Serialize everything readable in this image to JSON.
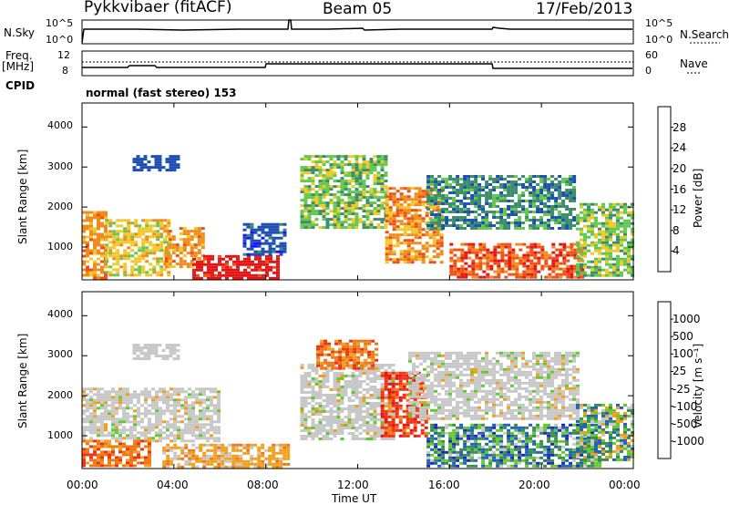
{
  "header": {
    "radar": "Pykkvibaer (fitACF)",
    "beam": "Beam 05",
    "date": "17/Feb/2013"
  },
  "top_panels": {
    "nsky_label": "N.Sky",
    "nsky_ticks": [
      "10^5",
      "10^0"
    ],
    "nsearch_label": "N.Search",
    "nsearch_ticks": [
      "10^5",
      "10^0"
    ],
    "freq_label": "Freq.",
    "freq_unit": "[MHz]",
    "freq_ticks": [
      "12",
      "8"
    ],
    "nave_label": "Nave",
    "nave_ticks": [
      "60",
      "0"
    ],
    "cpid_label": "CPID",
    "cpid_value": "normal (fast stereo) 153"
  },
  "chart_data": [
    {
      "type": "heatmap",
      "parameter": "Power",
      "ylabel": "Slant Range [km]",
      "xlabel": "",
      "x_ticks": [
        "00:00",
        "04:00",
        "08:00",
        "12:00",
        "16:00",
        "20:00",
        "00:00"
      ],
      "y_ticks": [
        1000,
        2000,
        3000,
        4000
      ],
      "ylim": [
        180,
        4600
      ],
      "xlim_hours": [
        0,
        24
      ],
      "colorbar": {
        "label": "Power [dB]",
        "ticks": [
          "4",
          "8",
          "12",
          "16",
          "20",
          "24",
          "28"
        ],
        "colors": [
          "#1414ff",
          "#1e50b4",
          "#3c8c6e",
          "#64c850",
          "#f0c828",
          "#f08c1e",
          "#f05014",
          "#e61414"
        ]
      },
      "regions": [
        {
          "t0": 0.0,
          "t1": 1.0,
          "r0": 250,
          "r1": 1900,
          "level": 5,
          "var": 0.4
        },
        {
          "t0": 1.0,
          "t1": 3.8,
          "r0": 300,
          "r1": 1700,
          "level": 4,
          "var": 0.4
        },
        {
          "t0": 2.2,
          "t1": 4.2,
          "r0": 2950,
          "r1": 3300,
          "level": 1,
          "var": 0.25
        },
        {
          "t0": 3.6,
          "t1": 5.2,
          "r0": 500,
          "r1": 1500,
          "level": 5,
          "var": 0.4
        },
        {
          "t0": 4.8,
          "t1": 8.6,
          "r0": 230,
          "r1": 800,
          "level": 7,
          "var": 0.3
        },
        {
          "t0": 7.0,
          "t1": 8.8,
          "r0": 800,
          "r1": 1600,
          "level": 1,
          "var": 0.3
        },
        {
          "t0": 9.5,
          "t1": 13.3,
          "r0": 1500,
          "r1": 3300,
          "level": 3,
          "var": 0.6
        },
        {
          "t0": 13.2,
          "t1": 15.6,
          "r0": 600,
          "r1": 2500,
          "level": 5,
          "var": 0.5
        },
        {
          "t0": 15.0,
          "t1": 21.5,
          "r0": 1500,
          "r1": 2800,
          "level": 2,
          "var": 0.5
        },
        {
          "t0": 16.0,
          "t1": 21.8,
          "r0": 220,
          "r1": 1100,
          "level": 6,
          "var": 0.5
        },
        {
          "t0": 21.5,
          "t1": 24.0,
          "r0": 300,
          "r1": 2100,
          "level": 3,
          "var": 0.5
        }
      ]
    },
    {
      "type": "heatmap",
      "parameter": "Velocity",
      "ylabel": "Slant Range [km]",
      "xlabel": "Time UT",
      "x_ticks": [
        "00:00",
        "04:00",
        "08:00",
        "12:00",
        "16:00",
        "20:00",
        "00:00"
      ],
      "y_ticks": [
        1000,
        2000,
        3000,
        4000
      ],
      "ylim": [
        180,
        4600
      ],
      "xlim_hours": [
        0,
        24
      ],
      "colorbar": {
        "label": "Velocity [m s⁻¹]",
        "ticks": [
          "1000",
          "500",
          "100",
          "25",
          "-25",
          "-100",
          "-500",
          "-1000"
        ],
        "colors": [
          "#1e28b4",
          "#1e64b4",
          "#3c8c50",
          "#64c832",
          "#c8c8c8",
          "#f0a01e",
          "#f07814",
          "#f03214",
          "#e61414"
        ]
      },
      "regions": [
        {
          "t0": 0.0,
          "t1": 6.0,
          "r0": 900,
          "r1": 2200,
          "level": 4,
          "var": 0.3
        },
        {
          "t0": 0.0,
          "t1": 3.0,
          "r0": 250,
          "r1": 900,
          "level": 6,
          "var": 0.6
        },
        {
          "t0": 2.2,
          "t1": 4.2,
          "r0": 2950,
          "r1": 3300,
          "level": 4,
          "var": 0.2
        },
        {
          "t0": 3.5,
          "t1": 9.0,
          "r0": 220,
          "r1": 800,
          "level": 5,
          "var": 0.4
        },
        {
          "t0": 9.5,
          "t1": 13.5,
          "r0": 900,
          "r1": 2800,
          "level": 4,
          "var": 0.3
        },
        {
          "t0": 10.2,
          "t1": 12.8,
          "r0": 2700,
          "r1": 3400,
          "level": 6,
          "var": 0.5
        },
        {
          "t0": 13.0,
          "t1": 15.0,
          "r0": 1000,
          "r1": 2600,
          "level": 7,
          "var": 0.5
        },
        {
          "t0": 14.2,
          "t1": 21.5,
          "r0": 1400,
          "r1": 3100,
          "level": 4,
          "var": 0.3
        },
        {
          "t0": 15.0,
          "t1": 22.5,
          "r0": 230,
          "r1": 1300,
          "level": 2,
          "var": 1.0
        },
        {
          "t0": 21.5,
          "t1": 24.0,
          "r0": 400,
          "r1": 1800,
          "level": 3,
          "var": 1.2
        }
      ]
    }
  ]
}
